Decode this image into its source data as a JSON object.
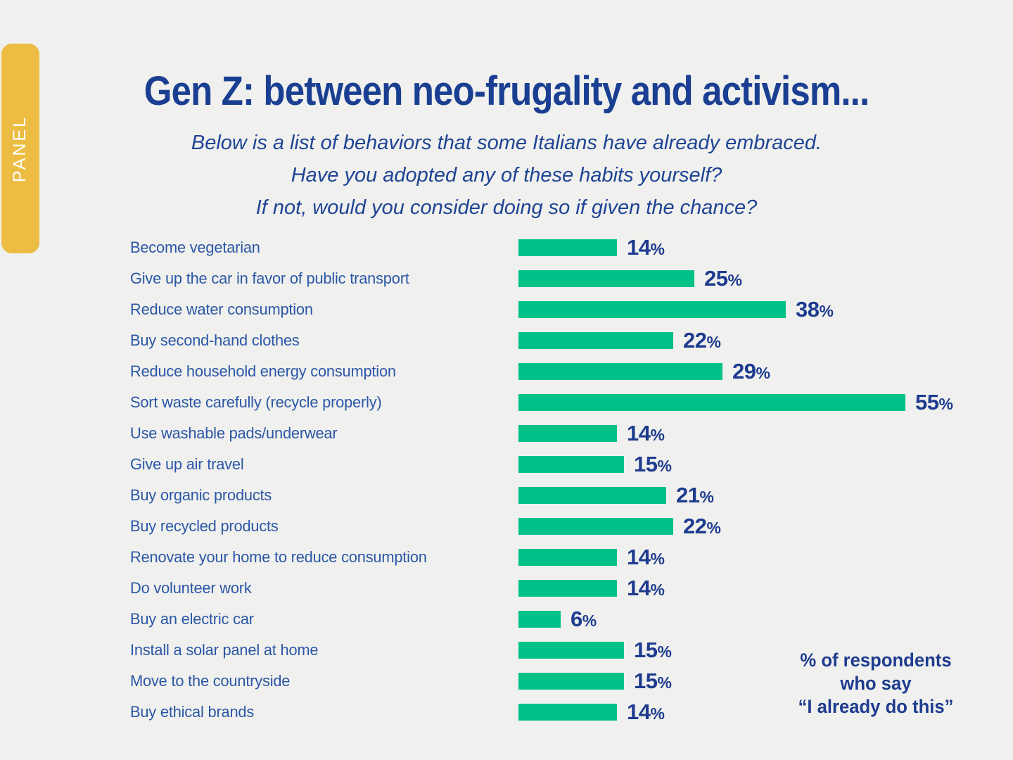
{
  "colors": {
    "background": "#f0f0ee",
    "title_blue": "#1a3f92",
    "subtitle_blue": "#1e4494",
    "label_blue": "#2b57a7",
    "value_navy": "#1e3c8f",
    "bar_green": "#00c289",
    "tab_yellow": "#ecbc43",
    "tab_text": "#ffffff"
  },
  "side_tab": {
    "label": "PANEL"
  },
  "header": {
    "title": "Gen Z: between neo-frugality and activism...",
    "subtitle_lines": [
      "Below is a list of behaviors that some Italians have already embraced.",
      "Have you adopted any of these habits yourself?",
      "If not, would you consider doing so if given the chance?"
    ]
  },
  "chart_data": {
    "type": "bar",
    "orientation": "horizontal",
    "title": "Gen Z: between neo-frugality and activism...",
    "categories": [
      "Become vegetarian",
      "Give up the car in favor of public transport",
      "Reduce water consumption",
      "Buy second-hand clothes",
      "Reduce household energy consumption",
      "Sort waste carefully (recycle properly)",
      "Use washable pads/underwear",
      "Give up air travel",
      "Buy organic products",
      "Buy recycled products",
      "Renovate your home to reduce consumption",
      "Do volunteer work",
      "Buy an electric car",
      "Install a solar panel at home",
      "Move to the countryside",
      "Buy ethical brands"
    ],
    "values": [
      14,
      25,
      38,
      22,
      29,
      55,
      14,
      15,
      21,
      22,
      14,
      14,
      6,
      15,
      15,
      14
    ],
    "unit": "%",
    "xlim": [
      0,
      55
    ],
    "grid": false,
    "value_labels": "end-of-bar",
    "legend_position": "bottom-right"
  },
  "legend": {
    "lines": [
      "% of respondents",
      "who say",
      "“I already do this”"
    ]
  }
}
